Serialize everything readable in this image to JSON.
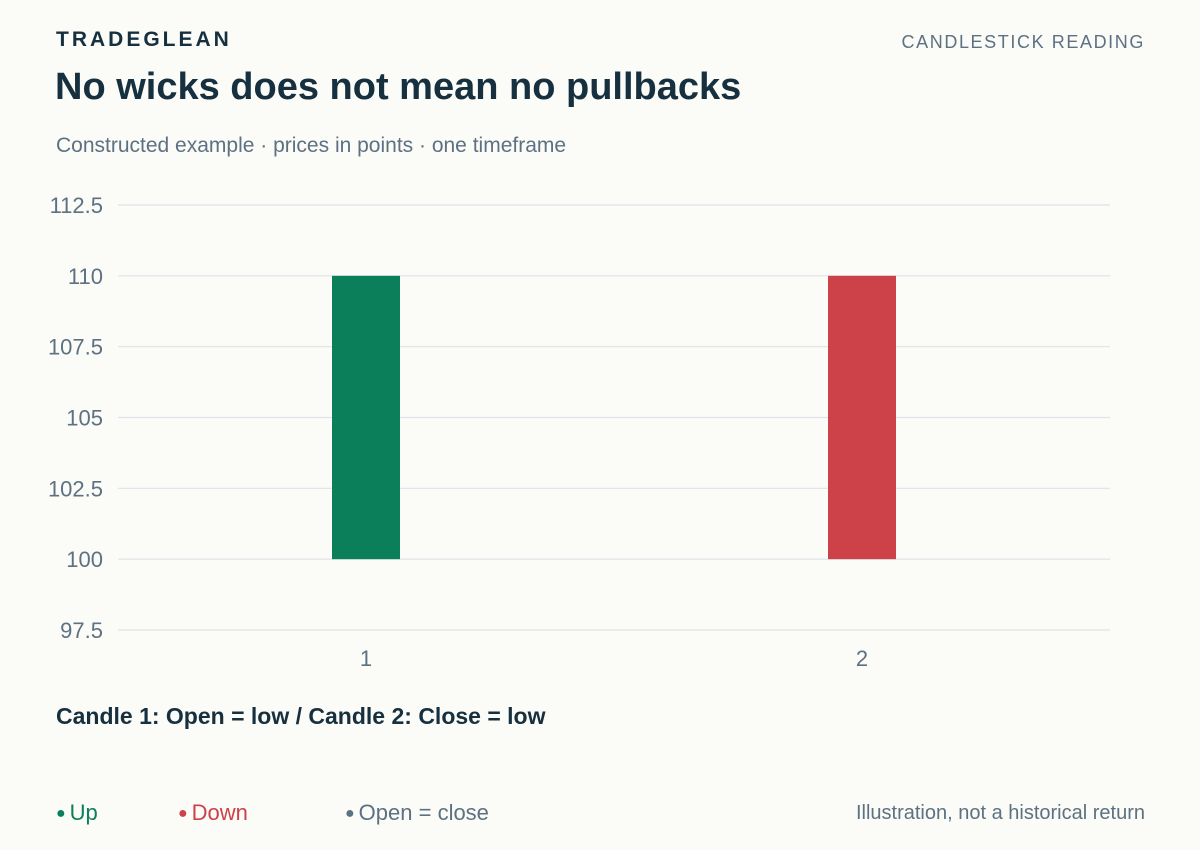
{
  "header": {
    "brand": "TRADEGLEAN",
    "section": "CANDLESTICK READING",
    "title": "No wicks does not mean no pullbacks",
    "subtitle": "Constructed example · prices in points · one timeframe"
  },
  "chart_data": {
    "type": "candlestick",
    "categories": [
      "1",
      "2"
    ],
    "candles": [
      {
        "label": "1",
        "open": 100,
        "high": 110,
        "low": 100,
        "close": 110,
        "direction": "up"
      },
      {
        "label": "2",
        "open": 110,
        "high": 110,
        "low": 100,
        "close": 100,
        "direction": "down"
      }
    ],
    "y_ticks": [
      "97.5",
      "100",
      "102.5",
      "105",
      "107.5",
      "110",
      "112.5"
    ],
    "ylim": [
      97.5,
      112.5
    ],
    "grid": true,
    "colors": {
      "up": "#0a7f5a",
      "down": "#cd4149",
      "flat": "#5d7182",
      "grid": "#dde3ea",
      "tick": "#5d7182"
    }
  },
  "caption": "Candle 1: Open = low / Candle 2: Close = low",
  "legend": {
    "up": "Up",
    "down": "Down",
    "flat": "Open = close",
    "dot": "●"
  },
  "footnote": "Illustration, not a historical return"
}
